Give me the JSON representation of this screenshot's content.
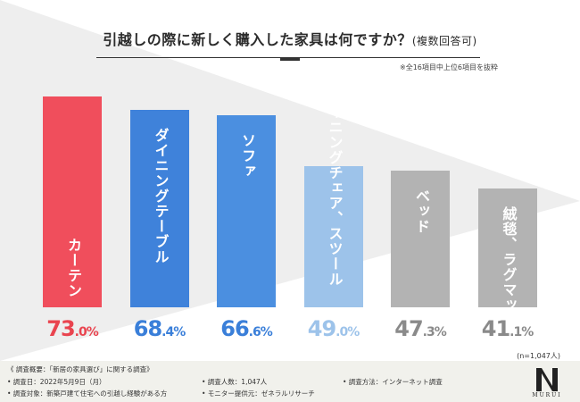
{
  "header": {
    "title": "引越しの際に新しく購入した家具は何ですか？",
    "title_sub": "(複数回答可)",
    "note": "※全16項目中上位6項目を抜粋"
  },
  "chart_data": {
    "type": "bar",
    "title": "引越しの際に新しく購入した家具は何ですか？(複数回答可)",
    "categories": [
      "カーテン",
      "ダイニングテーブル",
      "ソファ",
      "ダイニングチェア、スツール",
      "ベッド",
      "絨毯、ラグマット"
    ],
    "values": [
      73.0,
      68.4,
      66.6,
      49.0,
      47.3,
      41.1
    ],
    "value_labels": [
      {
        "int": "73",
        "dec": ".0%"
      },
      {
        "int": "68",
        "dec": ".4%"
      },
      {
        "int": "66",
        "dec": ".6%"
      },
      {
        "int": "49",
        "dec": ".0%"
      },
      {
        "int": "47",
        "dec": ".3%"
      },
      {
        "int": "41",
        "dec": ".1%"
      }
    ],
    "colors": [
      "#f04e5c",
      "#3f82da",
      "#4b8fe0",
      "#9dc3ea",
      "#b3b3b3",
      "#b3b3b3"
    ],
    "label_colors": [
      "#e9444f",
      "#3a7fd9",
      "#3a7fd9",
      "#9dc3ea",
      "#8a8a8a",
      "#8a8a8a"
    ],
    "ylim": [
      0,
      80
    ],
    "xlabel": "",
    "ylabel": "",
    "sample_note": "(n=1,047人)"
  },
  "footer": {
    "heading": "《 調査概要：「新居の家具選び」に関する調査》",
    "date": "• 調査日：2022年5月9日（月）",
    "target": "• 調査対象：新築戸建て住宅への引越し経験がある方",
    "count": "• 調査人数：1,047人",
    "provider": "• モニター提供元：ゼネラルリサーチ",
    "method": "• 調査方法：インターネット調査",
    "brand": "MURUI"
  },
  "colors": {
    "accent_red": "#f04e5c",
    "accent_blue": "#3f82da",
    "light_blue": "#9dc3ea",
    "gray": "#b3b3b3",
    "footer_bg": "#f1f1ec"
  }
}
